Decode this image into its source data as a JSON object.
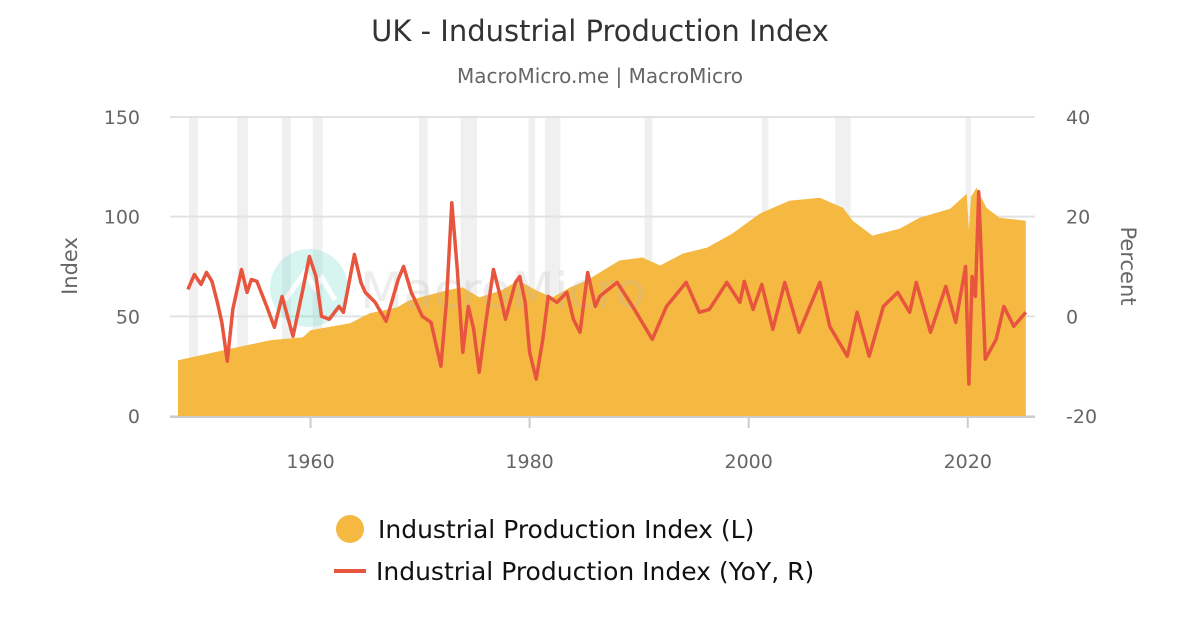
{
  "title": "UK - Industrial Production Index",
  "subtitle": "MacroMicro.me | MacroMicro",
  "watermark": "MacroMicro",
  "chart_data": {
    "type": "area+line",
    "title": "UK - Industrial Production Index",
    "subtitle": "MacroMicro.me | MacroMicro",
    "x_range": [
      1947.9,
      2025.5
    ],
    "x_ticks": [
      "1960",
      "1980",
      "2000",
      "2020"
    ],
    "y_left": {
      "label": "Index",
      "lim": [
        0,
        150
      ],
      "ticks": [
        "0",
        "50",
        "100",
        "150"
      ]
    },
    "y_right": {
      "label": "Percent",
      "lim": [
        -20,
        40
      ],
      "ticks": [
        "-20",
        "0",
        "20",
        "40"
      ]
    },
    "grid": true,
    "legend_position": "bottom",
    "recessions": [
      [
        1948.9,
        1949.7
      ],
      [
        1953.3,
        1954.3
      ],
      [
        1957.4,
        1958.2
      ],
      [
        1960.2,
        1961.1
      ],
      [
        1969.9,
        1970.7
      ],
      [
        1973.7,
        1975.2
      ],
      [
        1979.9,
        1980.5
      ],
      [
        1981.4,
        1982.8
      ],
      [
        1990.5,
        1991.2
      ],
      [
        2001.2,
        2001.8
      ],
      [
        2007.9,
        2009.3
      ],
      [
        2019.8,
        2020.3
      ]
    ],
    "series": [
      {
        "name": "Industrial Production Index (L)",
        "type": "area",
        "axis": "left",
        "color": "#F5B941",
        "x": [
          1947.9,
          1952.9,
          1956.3,
          1959.3,
          1960,
          1963.6,
          1965.4,
          1967.9,
          1969,
          1972.4,
          1973.9,
          1975.4,
          1977.4,
          1979,
          1980.6,
          1982.1,
          1983.7,
          1985.2,
          1986.7,
          1988.2,
          1990.3,
          1991.9,
          1994,
          1996.2,
          1998.5,
          2001,
          2003.7,
          2006.5,
          2008.6,
          2009.5,
          2011.3,
          2013.8,
          2015.6,
          2018.4,
          2019.9,
          2020.1,
          2020.3,
          2020.8,
          2021.7,
          2022.9,
          2025.3
        ],
        "y": [
          28,
          34,
          38,
          39.5,
          43,
          46.5,
          51.5,
          54.5,
          58,
          63,
          64.5,
          59.5,
          63,
          68,
          63,
          59.5,
          64.5,
          68,
          73,
          78,
          79.5,
          75.5,
          81.5,
          84.5,
          91.5,
          101.5,
          108,
          109.5,
          104.5,
          98,
          90.5,
          94,
          99.5,
          104,
          111.5,
          93,
          110,
          114.5,
          104.5,
          99.5,
          98
        ]
      },
      {
        "name": "Industrial Production Index (YoY, R)",
        "type": "line",
        "axis": "right",
        "color": "#E8553E",
        "x": [
          1948.8,
          1949.4,
          1950,
          1950.5,
          1951,
          1951.5,
          1951.9,
          1952.4,
          1952.9,
          1953.7,
          1954.2,
          1954.6,
          1955.1,
          1956,
          1956.7,
          1957.4,
          1958.4,
          1959.3,
          1959.9,
          1960.5,
          1961,
          1961.7,
          1962.6,
          1963,
          1964,
          1964.6,
          1965,
          1965.9,
          1966.9,
          1968,
          1968.5,
          1969.2,
          1970.2,
          1971,
          1971.9,
          1972.4,
          1972.9,
          1973.4,
          1973.9,
          1974.4,
          1974.9,
          1975.4,
          1976,
          1976.7,
          1977.4,
          1977.8,
          1978.7,
          1979.1,
          1979.6,
          1980,
          1980.6,
          1981.2,
          1981.7,
          1982.5,
          1983.4,
          1984,
          1984.6,
          1985.3,
          1986,
          1986.4,
          1988,
          1989.4,
          1991.2,
          1992.5,
          1994.3,
          1995.5,
          1996.4,
          1998,
          1999.2,
          1999.6,
          2000.4,
          2001.2,
          2002.2,
          2003.3,
          2004.6,
          2006.5,
          2007.4,
          2009,
          2009.9,
          2011,
          2012.3,
          2013.6,
          2014.7,
          2015.3,
          2016.6,
          2018,
          2018.9,
          2019.8,
          2020.1,
          2020.4,
          2020.7,
          2021,
          2021.6,
          2022.6,
          2023.3,
          2024.2,
          2025.3
        ],
        "y": [
          5.4,
          8.4,
          6.4,
          8.8,
          7,
          2.8,
          -1.2,
          -9,
          1.4,
          9.4,
          4.8,
          7.4,
          7,
          2,
          -2.2,
          4,
          -4,
          5.4,
          12,
          8,
          0,
          -0.6,
          2,
          0.8,
          12.4,
          6.8,
          4.8,
          2.8,
          -1,
          7.4,
          10,
          4.8,
          0,
          -1.2,
          -10,
          2.8,
          22.8,
          9.4,
          -7.2,
          2,
          -2.6,
          -11.2,
          -1.2,
          9.4,
          3.4,
          -0.6,
          6.8,
          8,
          2.8,
          -7.2,
          -12.6,
          -4.6,
          4,
          2.8,
          4.8,
          -0.6,
          -3.2,
          8.8,
          2,
          4,
          6.8,
          2,
          -4.6,
          2,
          6.8,
          0.8,
          1.4,
          6.8,
          2.8,
          7,
          1.4,
          6.4,
          -2.6,
          6.8,
          -3.2,
          6.8,
          -2,
          -8,
          0.8,
          -8,
          2,
          4.8,
          0.8,
          6.8,
          -3.2,
          6,
          -1.2,
          10,
          -13.6,
          8,
          4,
          25,
          -8.6,
          -4.6,
          2,
          -2,
          0.8
        ]
      }
    ]
  }
}
